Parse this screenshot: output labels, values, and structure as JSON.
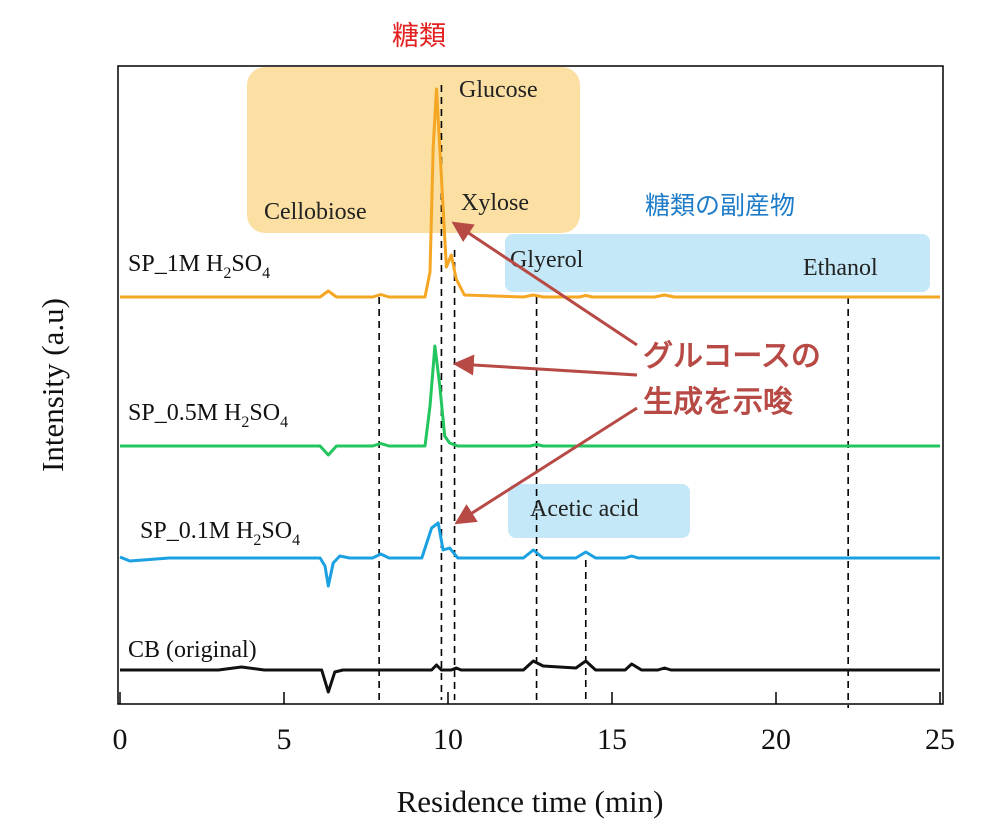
{
  "chart_data": {
    "type": "line",
    "xlabel": "Residence time (min)",
    "ylabel": "Intensity (a.u)",
    "xlim": [
      0,
      25
    ],
    "x_ticks": [
      0,
      5,
      10,
      15,
      20,
      25
    ],
    "x_tick_labels": [
      "0",
      "5",
      "10",
      "15",
      "20",
      "25"
    ],
    "grid": false,
    "legend": "none",
    "series": [
      {
        "key": "sp1m",
        "name_prefix": "SP_1M H",
        "name_sub1": "2",
        "name_mid": "SO",
        "name_sub2": "4",
        "color": "#f5a623",
        "points": [
          [
            0,
            0
          ],
          [
            6.1,
            0
          ],
          [
            6.35,
            6
          ],
          [
            6.6,
            0
          ],
          [
            7.7,
            0
          ],
          [
            7.95,
            2.5
          ],
          [
            8.2,
            0
          ],
          [
            9.3,
            0
          ],
          [
            9.45,
            25
          ],
          [
            9.55,
            150
          ],
          [
            9.65,
            208
          ],
          [
            9.8,
            120
          ],
          [
            9.95,
            30
          ],
          [
            10.1,
            42
          ],
          [
            10.25,
            18
          ],
          [
            10.5,
            2
          ],
          [
            12.3,
            0
          ],
          [
            12.6,
            2
          ],
          [
            12.9,
            0
          ],
          [
            14.0,
            0
          ],
          [
            14.2,
            1.5
          ],
          [
            14.4,
            0
          ],
          [
            16.3,
            0
          ],
          [
            16.6,
            2
          ],
          [
            16.9,
            0
          ],
          [
            25,
            0
          ]
        ]
      },
      {
        "key": "sp05m",
        "name_prefix": "SP_0.5M H",
        "name_sub1": "2",
        "name_mid": "SO",
        "name_sub2": "4",
        "color": "#22c55e",
        "points": [
          [
            0,
            0
          ],
          [
            6.1,
            0
          ],
          [
            6.35,
            -9
          ],
          [
            6.6,
            0
          ],
          [
            7.7,
            0
          ],
          [
            7.95,
            2.5
          ],
          [
            8.2,
            0
          ],
          [
            9.3,
            0
          ],
          [
            9.45,
            40
          ],
          [
            9.6,
            100
          ],
          [
            9.75,
            60
          ],
          [
            9.9,
            10
          ],
          [
            10.05,
            3
          ],
          [
            10.3,
            0
          ],
          [
            12.5,
            0
          ],
          [
            12.7,
            1.5
          ],
          [
            12.9,
            0
          ],
          [
            25,
            0
          ]
        ]
      },
      {
        "key": "sp01m",
        "name_prefix": "SP_0.1M H",
        "name_sub1": "2",
        "name_mid": "SO",
        "name_sub2": "4",
        "color": "#1ba1e2",
        "points": [
          [
            0,
            1
          ],
          [
            0.3,
            -3
          ],
          [
            1.5,
            0
          ],
          [
            6.1,
            0
          ],
          [
            6.25,
            -8
          ],
          [
            6.35,
            -28
          ],
          [
            6.5,
            -5
          ],
          [
            6.7,
            2
          ],
          [
            7.0,
            0
          ],
          [
            7.7,
            0
          ],
          [
            7.95,
            4
          ],
          [
            8.2,
            0
          ],
          [
            9.2,
            0
          ],
          [
            9.5,
            30
          ],
          [
            9.7,
            35
          ],
          [
            9.85,
            8
          ],
          [
            10.05,
            10
          ],
          [
            10.3,
            0
          ],
          [
            12.3,
            0
          ],
          [
            12.6,
            8
          ],
          [
            12.9,
            0
          ],
          [
            13.9,
            0
          ],
          [
            14.2,
            6
          ],
          [
            14.5,
            0
          ],
          [
            15.4,
            0
          ],
          [
            15.6,
            2
          ],
          [
            15.8,
            0
          ],
          [
            25,
            0
          ]
        ]
      },
      {
        "key": "cb",
        "name_text": "CB (original)",
        "color": "#111111",
        "points": [
          [
            0,
            0
          ],
          [
            3.0,
            0
          ],
          [
            3.7,
            3
          ],
          [
            4.4,
            0
          ],
          [
            6.15,
            0
          ],
          [
            6.35,
            -22
          ],
          [
            6.55,
            -2
          ],
          [
            6.8,
            0
          ],
          [
            9.5,
            0
          ],
          [
            9.65,
            5
          ],
          [
            9.8,
            0
          ],
          [
            10.1,
            0
          ],
          [
            10.25,
            2
          ],
          [
            10.4,
            0
          ],
          [
            12.3,
            0
          ],
          [
            12.6,
            9
          ],
          [
            12.9,
            4
          ],
          [
            13.4,
            3
          ],
          [
            13.9,
            2
          ],
          [
            14.2,
            9
          ],
          [
            14.5,
            0
          ],
          [
            15.4,
            0
          ],
          [
            15.6,
            6
          ],
          [
            15.9,
            0
          ],
          [
            16.4,
            0
          ],
          [
            16.6,
            2
          ],
          [
            16.8,
            0
          ],
          [
            25,
            0
          ]
        ]
      }
    ],
    "reference_lines_x": [
      7.9,
      9.8,
      10.2,
      12.7,
      14.2,
      22.2
    ],
    "peak_labels": [
      "Glucose",
      "Cellobiose",
      "Xylose",
      "Glyerol",
      "Ethanol",
      "Acetic acid"
    ]
  },
  "annotations": {
    "sugars": "糖類",
    "byproducts": "糖類の副産物",
    "glucose_line1": "グルコースの",
    "glucose_line2": "生成を示唆"
  },
  "colors": {
    "sugar_box": "#fbdfa3",
    "byproduct_box": "#c4e8f7",
    "annotation_red": "#b84a46",
    "sugars_title": "#e32121",
    "byproducts_title": "#1e7cc8"
  }
}
